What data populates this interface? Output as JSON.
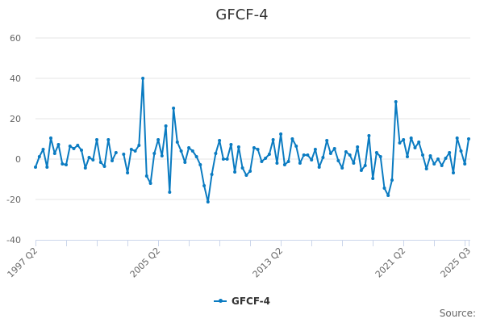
{
  "title": "GFCF-4",
  "legend": {
    "label": "GFCF-4",
    "color": "#0a7bc1"
  },
  "source_label": "Source:",
  "colors": {
    "series": "#0a7bc1",
    "grid": "#e6e6e6",
    "axis": "#ccd6eb",
    "text": "#666666"
  },
  "chart_data": {
    "type": "line",
    "title": "GFCF-4",
    "xlabel": "",
    "ylabel": "",
    "ylim": [
      -40,
      60
    ],
    "yticks": [
      60,
      40,
      20,
      0,
      -20,
      -40
    ],
    "grid": true,
    "legend_position": "bottom-center",
    "x_start": "1997 Q2",
    "x_end": "2025 Q3",
    "x_tick_labels": [
      "1997 Q2",
      "2005 Q2",
      "2013 Q2",
      "2021 Q2",
      "2025 Q3"
    ],
    "x_tick_label_indices": [
      0,
      32,
      64,
      96,
      113
    ],
    "x_minor_tick_every": 8,
    "series": [
      {
        "name": "GFCF-4",
        "values": [
          -4,
          1.2,
          4.8,
          -4,
          10.4,
          2.8,
          7.2,
          -2.4,
          -2.8,
          6.4,
          5.2,
          6.8,
          4.4,
          -4.4,
          0.8,
          -0.4,
          9.6,
          -1.6,
          -3.6,
          9.6,
          -0.8,
          3.2,
          null,
          2.4,
          -6.8,
          4.8,
          4,
          6.8,
          40,
          -8.4,
          -12,
          2.8,
          9.6,
          1.6,
          16.4,
          -16.4,
          25.2,
          8.4,
          4,
          -1.6,
          5.6,
          4,
          1.2,
          -2.8,
          -13.2,
          -21.2,
          -7.6,
          2.8,
          9.2,
          0,
          0,
          7.2,
          -6.4,
          6,
          -4.4,
          -8,
          -6,
          5.6,
          4.8,
          -1.2,
          0.4,
          2.4,
          9.6,
          -2,
          12.4,
          -2.8,
          -1.2,
          10,
          6.4,
          -2,
          2,
          2,
          -0.4,
          4.8,
          -4,
          0.8,
          9.2,
          2.8,
          5.2,
          -0.8,
          -4.4,
          3.6,
          2,
          -2,
          6,
          -5.6,
          -3.2,
          11.6,
          -9.6,
          3.2,
          1.2,
          -14.4,
          -18,
          -10.4,
          28.4,
          8,
          9.6,
          1.2,
          10.4,
          5.6,
          8.4,
          2,
          -4.8,
          1.6,
          -2.4,
          0,
          -3.2,
          0.4,
          3.2,
          -6.8,
          10.4,
          4,
          -2.4,
          10
        ]
      }
    ]
  }
}
